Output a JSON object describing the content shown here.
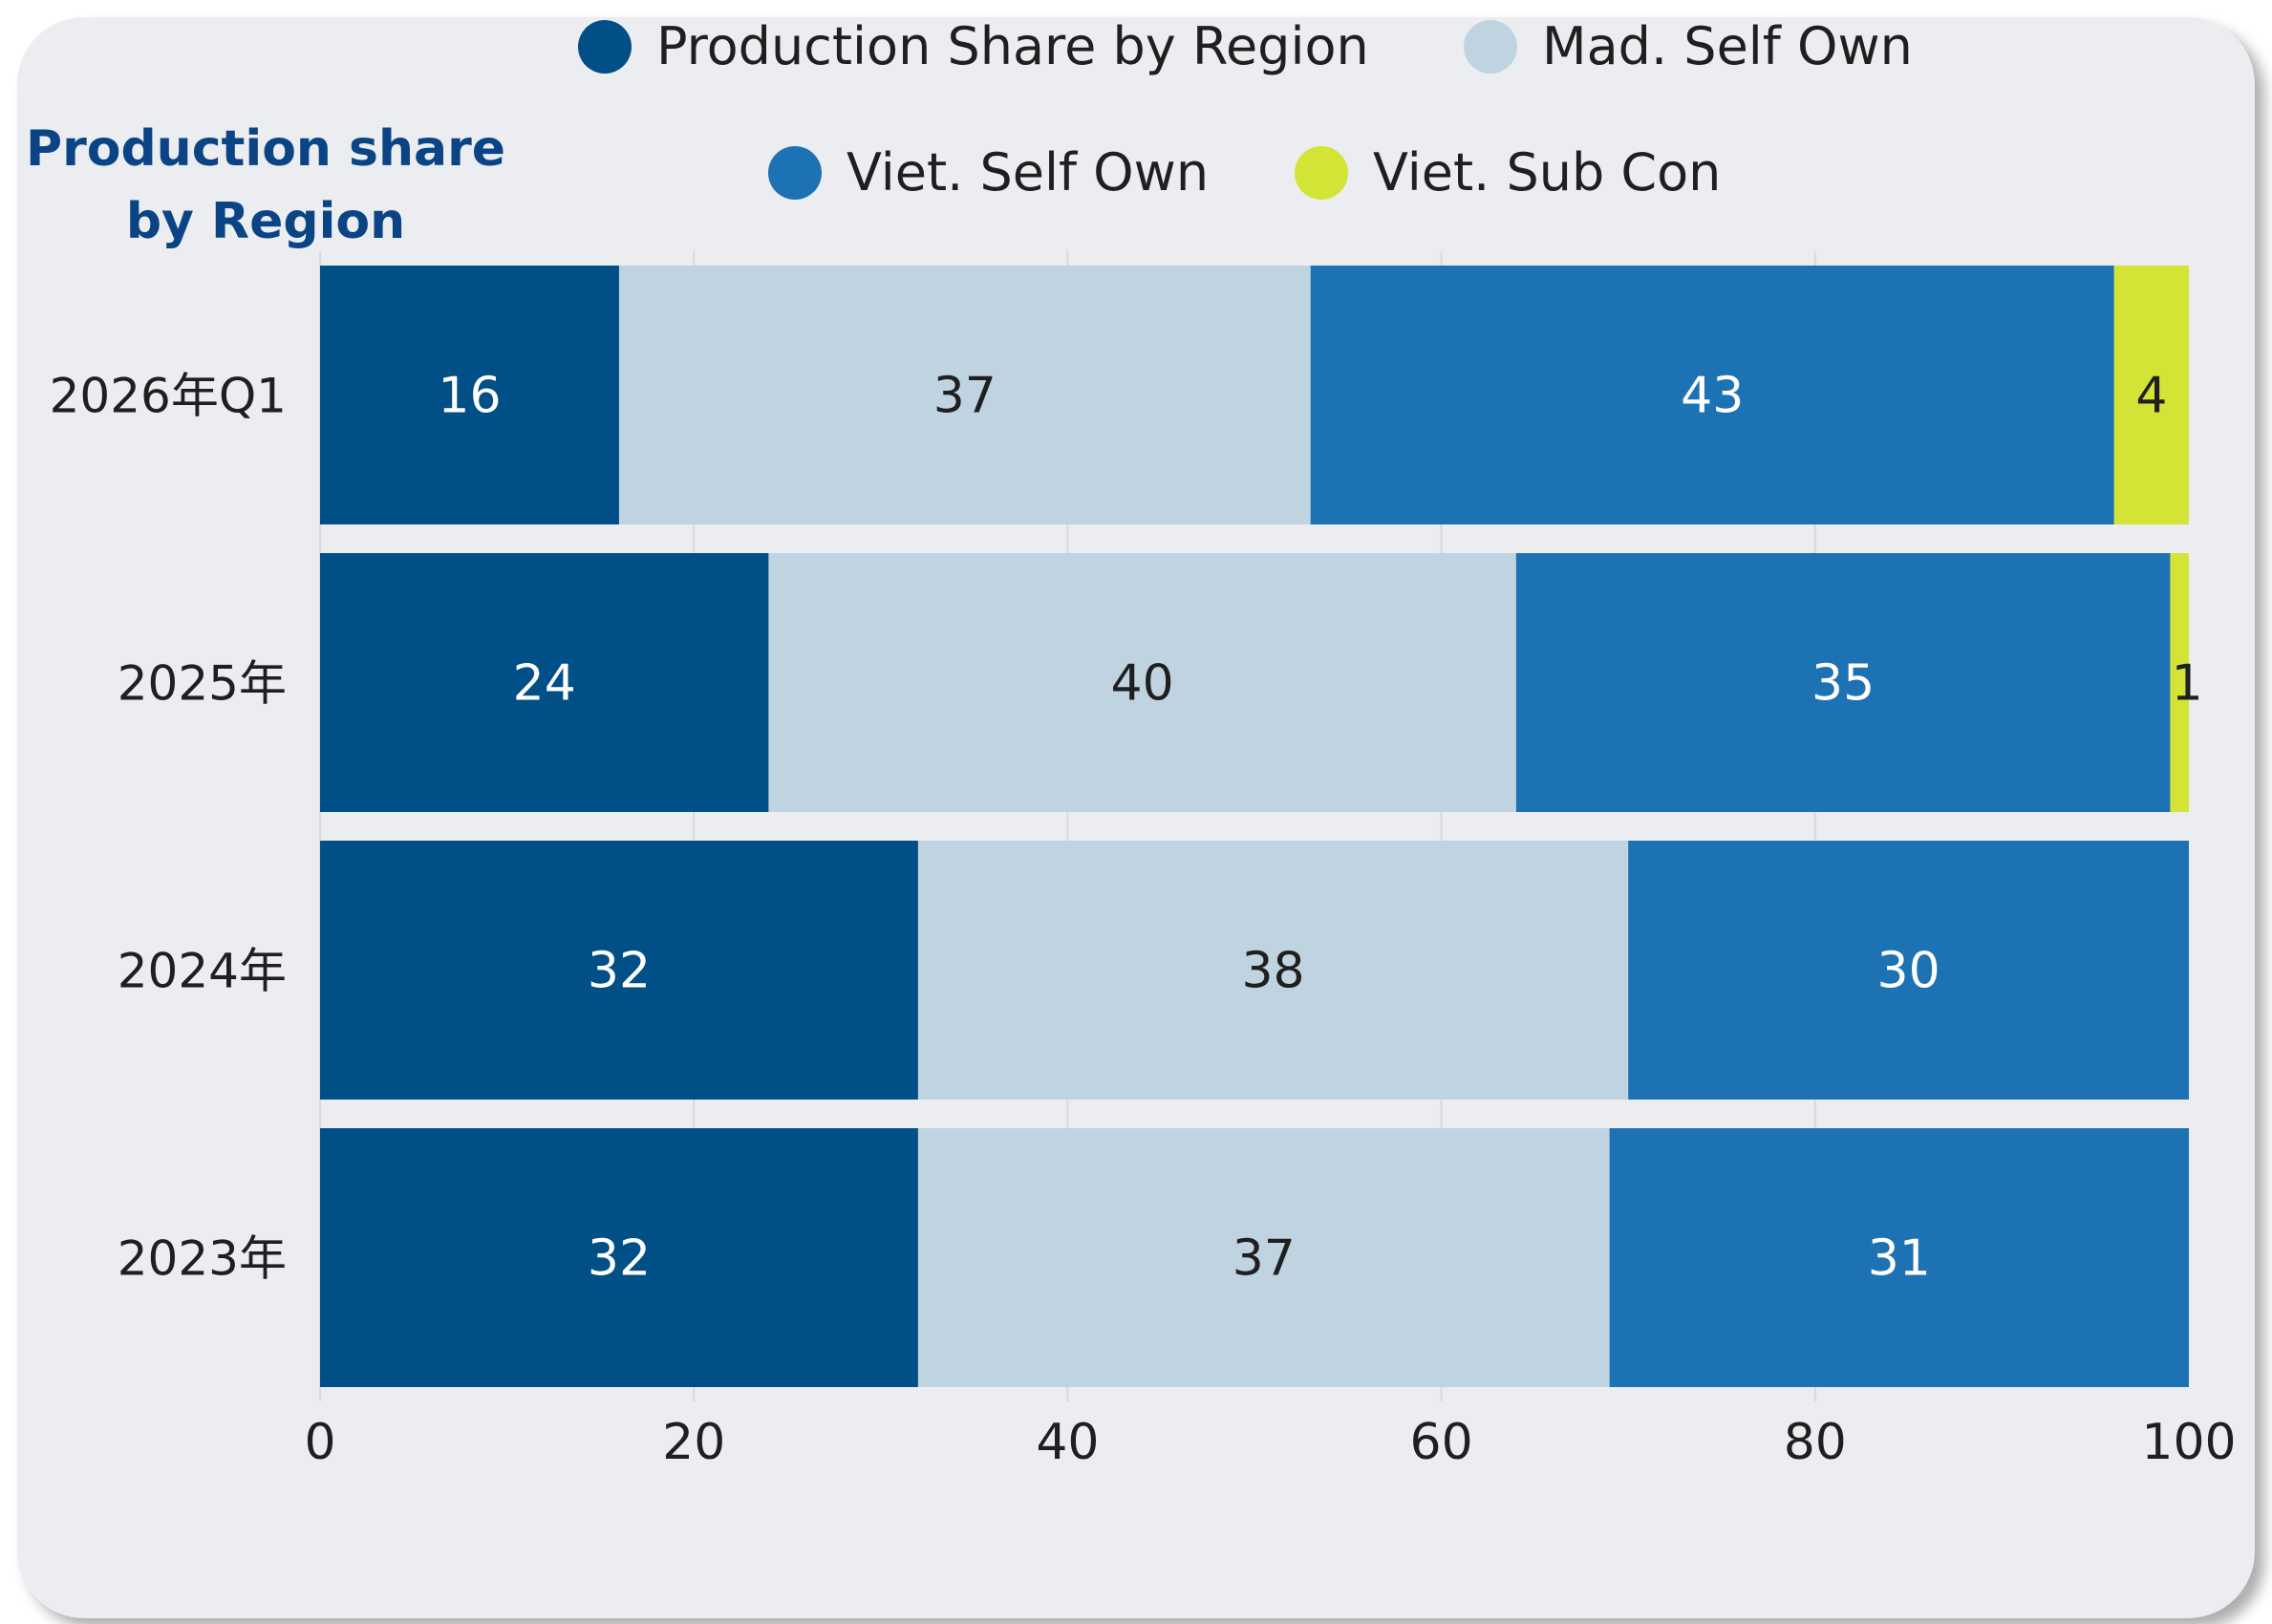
{
  "chart_data": {
    "type": "bar",
    "orientation": "horizontal",
    "stacked": true,
    "title": "Production share by Region",
    "title_lines": [
      "Production share",
      "by Region"
    ],
    "categories": [
      "2026年Q1",
      "2025年",
      "2024年",
      "2023年"
    ],
    "series": [
      {
        "name": "Production Share by Region",
        "color": "#014f87",
        "label_color": "#ffffff",
        "values": [
          16,
          24,
          32,
          32
        ]
      },
      {
        "name": "Mad. Self Own",
        "color": "#bfd3e1",
        "label_color": "#1f1f1f",
        "values": [
          37,
          40,
          38,
          37
        ]
      },
      {
        "name": "Viet. Self Own",
        "color": "#1d72b3",
        "label_color": "#ffffff",
        "values": [
          43,
          35,
          30,
          31
        ]
      },
      {
        "name": "Viet. Sub Con",
        "color": "#d4e436",
        "label_color": "#1f1f1f",
        "values": [
          4,
          1,
          0,
          0
        ]
      }
    ],
    "xlim": [
      0,
      100
    ],
    "xticks": [
      0,
      20,
      40,
      60,
      80,
      100
    ],
    "xlabel": "",
    "ylabel": "",
    "grid": true,
    "legend_position": "top"
  }
}
